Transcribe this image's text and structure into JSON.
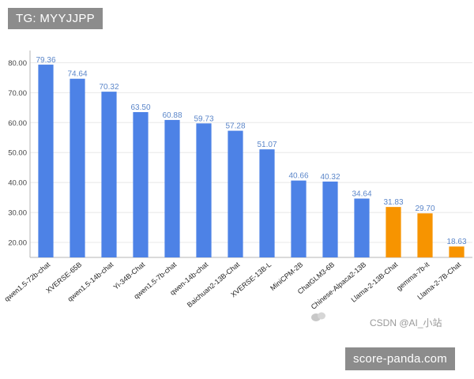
{
  "watermarks": {
    "top_tag": "TG: MYYJJPP",
    "csdn": "CSDN @AI_小站",
    "site": "score-panda.com"
  },
  "colors": {
    "primary_bar": "#4d82e6",
    "highlight_bar": "#f79400",
    "value_label": "#5b86c9",
    "grid": "#e8e8e8",
    "axis": "#b5b5b5"
  },
  "chart_data": {
    "type": "bar",
    "title": "",
    "xlabel": "",
    "ylabel": "",
    "ylim": [
      15,
      83
    ],
    "yticks": [
      "20.00",
      "30.00",
      "40.00",
      "50.00",
      "60.00",
      "70.00",
      "80.00"
    ],
    "grid": true,
    "categories": [
      "qwen1.5-72b-chat",
      "XVERSE-65B",
      "qwen1.5-14b-chat",
      "Yi-34B-Chat",
      "qwen1.5-7b-chat",
      "qwen-14b-chat",
      "Baichuan2-13B-Chat",
      "XVERSE-13B-L",
      "MiniCPM-2B",
      "ChatGLM3-6B",
      "Chinese-Alpaca2-13B",
      "Llama-2-13B-Chat",
      "gemma-7b-it",
      "Llama-2-7B-Chat"
    ],
    "values": [
      79.36,
      74.64,
      70.32,
      63.5,
      60.88,
      59.73,
      57.28,
      51.07,
      40.66,
      40.32,
      34.64,
      31.83,
      29.7,
      18.63
    ],
    "value_labels": [
      "79.36",
      "74.64",
      "70.32",
      "63.50",
      "60.88",
      "59.73",
      "57.28",
      "51.07",
      "40.66",
      "40.32",
      "34.64",
      "31.83",
      "29.70",
      "18.63"
    ],
    "highlight_indices": [
      11,
      12,
      13
    ]
  }
}
